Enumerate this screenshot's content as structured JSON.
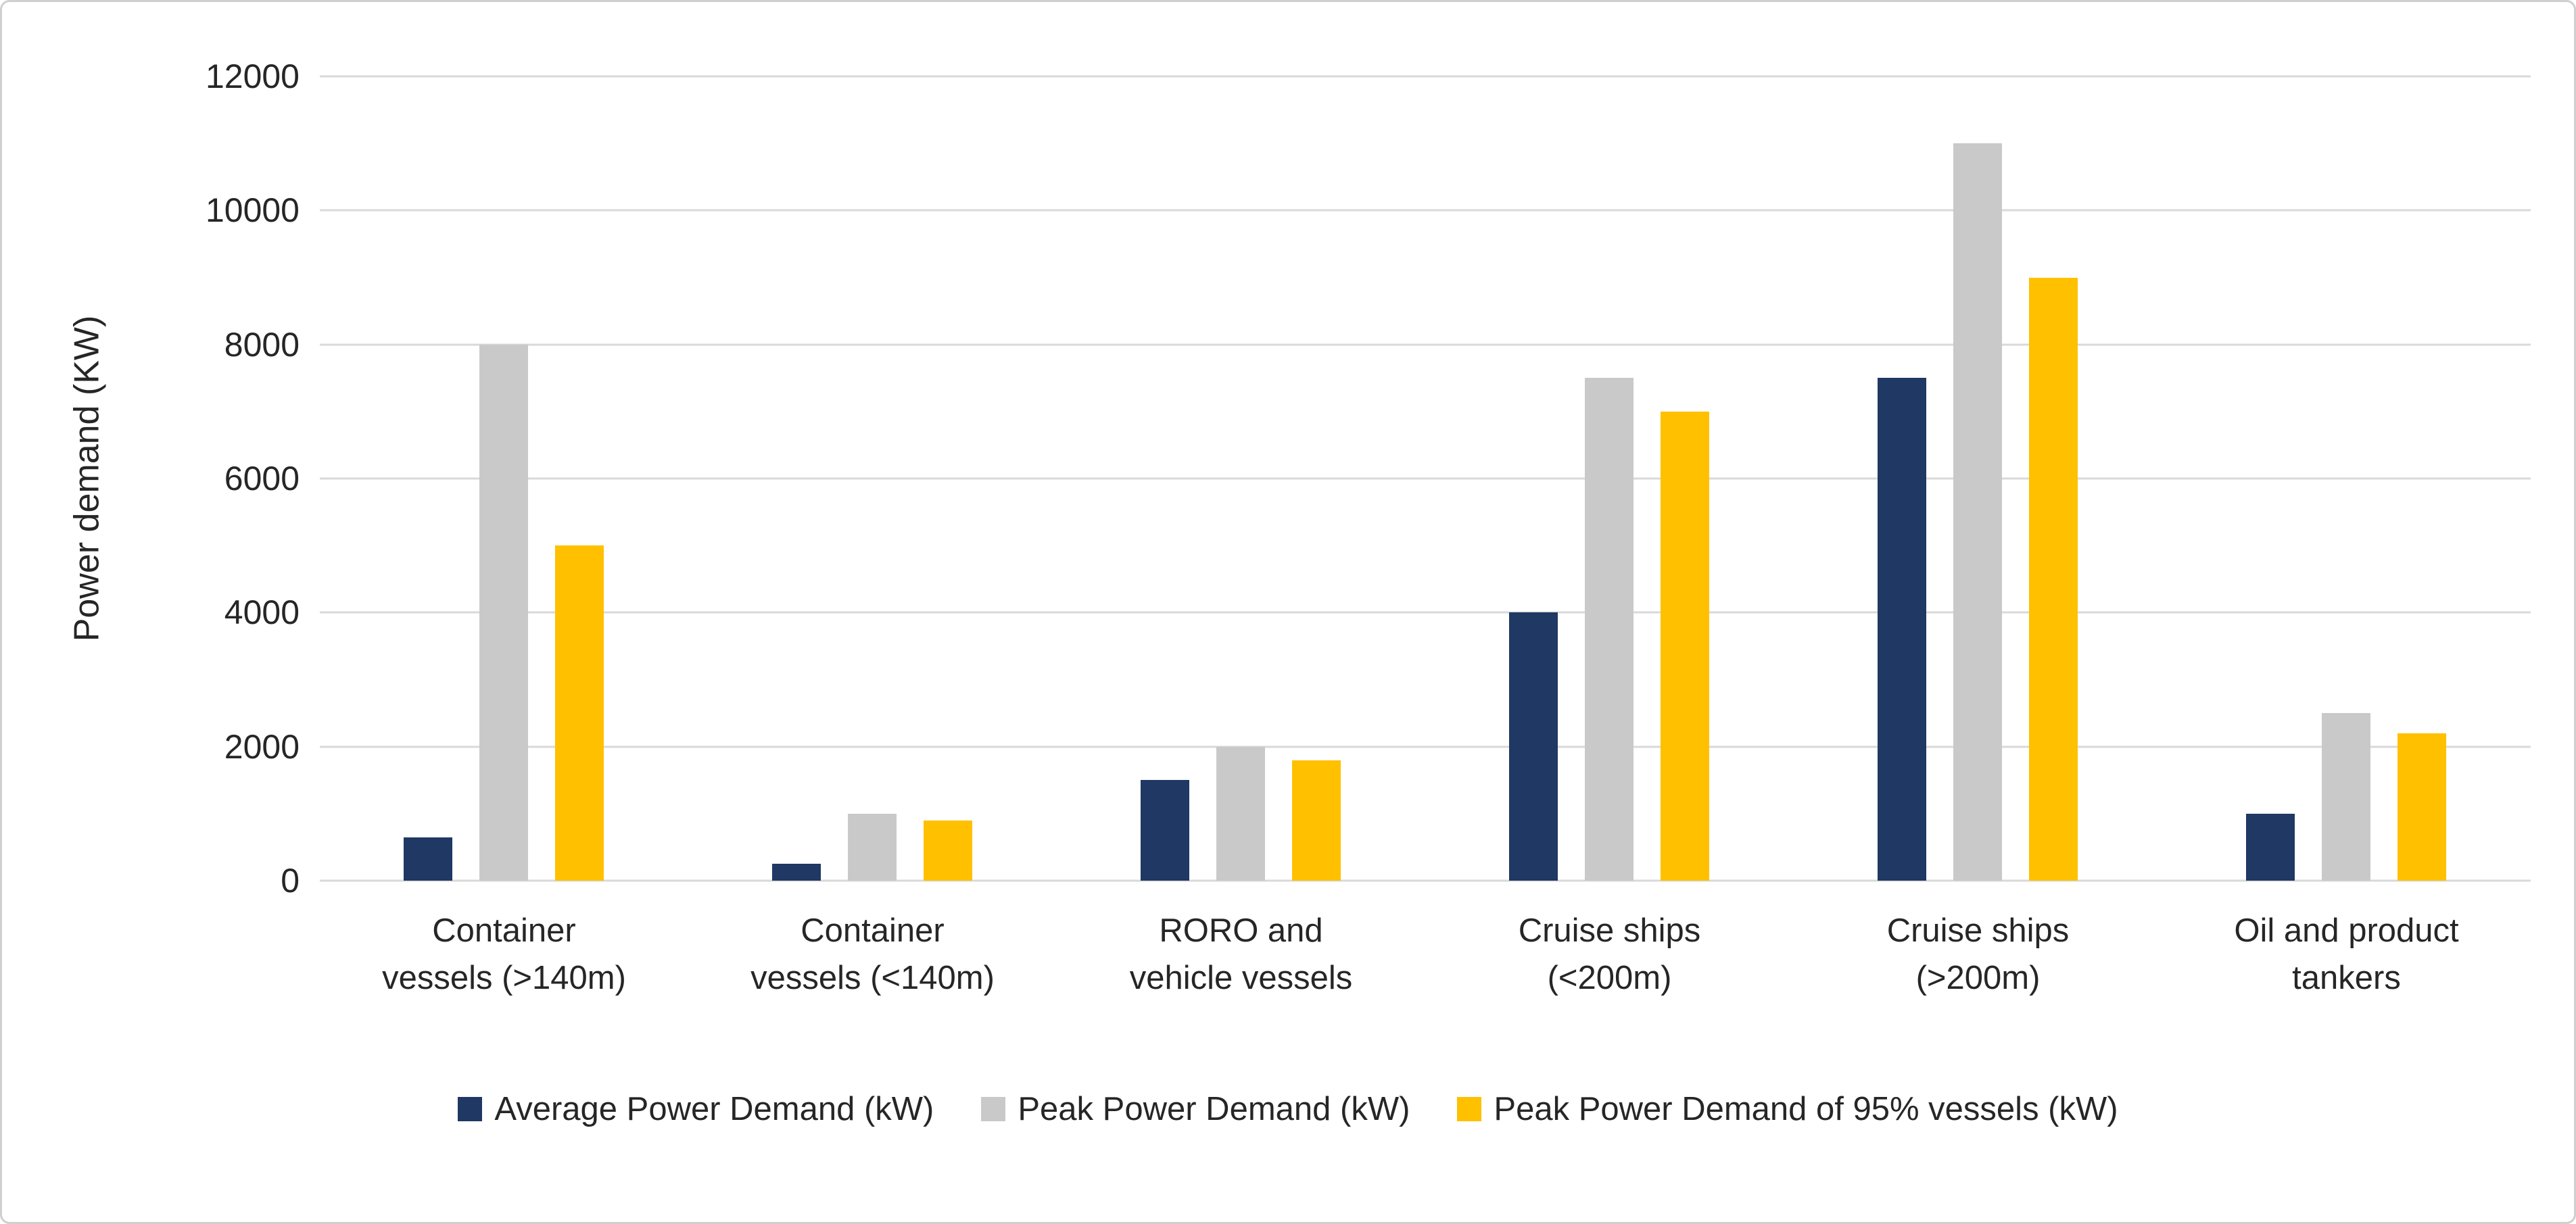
{
  "chart_data": {
    "type": "bar",
    "title": "",
    "xlabel": "",
    "ylabel": "Power demand (KW)",
    "ylim": [
      0,
      12000
    ],
    "yticks": [
      0,
      2000,
      4000,
      6000,
      8000,
      10000,
      12000
    ],
    "grid": true,
    "legend_position": "bottom",
    "categories": [
      "Container vessels (>140m)",
      "Container vessels (<140m)",
      "RORO and vehicle vessels",
      "Cruise ships (<200m)",
      "Cruise ships (>200m)",
      "Oil and product tankers"
    ],
    "category_label_lines": [
      [
        "Container",
        "vessels (>140m)"
      ],
      [
        "Container",
        "vessels (<140m)"
      ],
      [
        "RORO and",
        "vehicle vessels"
      ],
      [
        "Cruise ships",
        "(<200m)"
      ],
      [
        "Cruise ships",
        "(>200m)"
      ],
      [
        "Oil and product",
        "tankers"
      ]
    ],
    "series": [
      {
        "name": "Average Power Demand (kW)",
        "color": "#1F3864",
        "values": [
          650,
          250,
          1500,
          4000,
          7500,
          1000
        ]
      },
      {
        "name": "Peak Power Demand (kW)",
        "color": "#C9C9C9",
        "values": [
          8000,
          1000,
          2000,
          7500,
          11000,
          2500
        ]
      },
      {
        "name": "Peak Power Demand of 95% vessels (kW)",
        "color": "#FFC000",
        "values": [
          5000,
          900,
          1800,
          7000,
          9000,
          2200
        ]
      }
    ]
  }
}
